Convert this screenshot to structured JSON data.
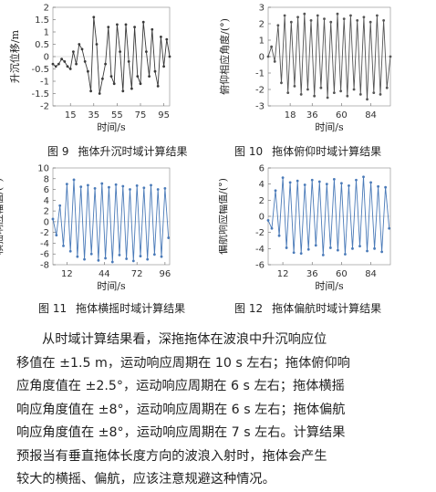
{
  "figures": [
    {
      "number": "图 9",
      "caption": "拖体升沉时域计算结果",
      "chart_data": {
        "type": "line",
        "ylabel": "升沉位移/m",
        "xlabel": "时间/s",
        "ylim": [
          -2,
          2
        ],
        "yticks": [
          2,
          1.5,
          1,
          0.5,
          0,
          -0.5,
          -1,
          -1.5,
          -2
        ],
        "xlim": [
          0,
          100
        ],
        "xticks": [
          15,
          35,
          55,
          75,
          95
        ],
        "color": "#3a3a3a",
        "series": [
          {
            "x": [
              0,
              2.5,
              5,
              7.5,
              10,
              12.5,
              15,
              17.5,
              20,
              22.5,
              25,
              27.5,
              30,
              32.5,
              35,
              37.5,
              40,
              42.5,
              45,
              47.5,
              50,
              52.5,
              55,
              57.5,
              60,
              62.5,
              65,
              67.5,
              70,
              72.5,
              75,
              77.5,
              80,
              82.5,
              85,
              87.5,
              90,
              92.5,
              95,
              97.5,
              100
            ],
            "values": [
              -0.3,
              -0.4,
              -0.3,
              -0.1,
              -0.2,
              -0.4,
              -0.5,
              0.2,
              -0.3,
              0.5,
              0.3,
              -0.2,
              -0.6,
              -1.4,
              1.6,
              0.5,
              -1.5,
              -0.9,
              -0.3,
              1.2,
              -0.8,
              -1.1,
              1.3,
              0.2,
              -1.4,
              1.3,
              -0.2,
              -1.3,
              1.2,
              -0.8,
              -1.1,
              1.4,
              0.2,
              -0.8,
              1.1,
              -0.6,
              -1.2,
              0.8,
              -0.4,
              0.7,
              0.0
            ]
          }
        ]
      }
    },
    {
      "number": "图 10",
      "caption": "拖体俯仰时域计算结果",
      "chart_data": {
        "type": "line",
        "ylabel": "俯仰相应角度/(°)",
        "xlabel": "时间/s",
        "ylim": [
          -3,
          3
        ],
        "yticks": [
          3,
          2,
          1,
          0,
          -1,
          -2,
          -3
        ],
        "xlim": [
          0,
          100
        ],
        "xticks": [
          18,
          36,
          60,
          84
        ],
        "color": "#555555",
        "series": [
          {
            "x": [
              0,
              2.7,
              5.4,
              8.1,
              10.8,
              13.5,
              16.2,
              18.9,
              21.6,
              24.3,
              27,
              29.7,
              32.4,
              35.1,
              37.8,
              40.5,
              43.2,
              45.9,
              48.6,
              51.3,
              54,
              56.7,
              59.4,
              62.1,
              64.8,
              67.5,
              70.2,
              72.9,
              75.6,
              78.3,
              81,
              83.7,
              86.4,
              89.1,
              91.8,
              94.5,
              97.2,
              100
            ],
            "values": [
              0.0,
              0.6,
              -0.3,
              1.9,
              -1.6,
              2.5,
              -2.2,
              2.1,
              -1.8,
              2.4,
              -2.3,
              2.6,
              -2.0,
              2.2,
              -2.4,
              2.5,
              -1.9,
              2.3,
              -2.5,
              2.1,
              -2.2,
              2.6,
              -2.1,
              2.3,
              -2.4,
              2.5,
              -2.0,
              2.2,
              -2.3,
              2.4,
              -2.6,
              2.1,
              -2.2,
              2.5,
              -2.3,
              2.2,
              -1.9,
              0.0
            ]
          }
        ]
      }
    },
    {
      "number": "图 11",
      "caption": "拖体横摇时域计算结果",
      "chart_data": {
        "type": "line",
        "ylabel": "横摇响应幅值/(°)",
        "xlabel": "时间/s",
        "ylim": [
          -8,
          10
        ],
        "yticks": [
          10,
          8,
          6,
          4,
          2,
          0,
          -2,
          -4,
          -6,
          -8
        ],
        "xlim": [
          0,
          100
        ],
        "xticks": [
          12,
          44,
          72,
          96
        ],
        "color": "#4a7ab8",
        "series": [
          {
            "x": [
              0,
              3,
              6,
              9,
              12,
              15,
              18,
              21,
              24,
              27,
              30,
              33,
              36,
              39,
              42,
              45,
              48,
              51,
              54,
              57,
              60,
              63,
              66,
              69,
              72,
              75,
              78,
              81,
              84,
              87,
              90,
              93,
              96,
              99
            ],
            "values": [
              0.5,
              -2.5,
              3.0,
              -4.5,
              7.0,
              -5.5,
              7.8,
              -6.5,
              6.5,
              -7.0,
              6.8,
              -6.0,
              6.2,
              -7.2,
              7.1,
              -6.8,
              6.4,
              -7.5,
              6.9,
              -6.2,
              6.6,
              -6.9,
              6.0,
              -7.3,
              6.7,
              -6.4,
              6.3,
              -7.0,
              6.8,
              -6.1,
              6.0,
              -6.5,
              6.2,
              -3.0
            ]
          }
        ]
      }
    },
    {
      "number": "图 12",
      "caption": "拖体偏航时域计算结果",
      "chart_data": {
        "type": "line",
        "ylabel": "偏航响应幅值/(°)",
        "xlabel": "时间/s",
        "ylim": [
          -6,
          6
        ],
        "yticks": [
          6,
          4,
          2,
          0,
          -2,
          -4,
          -6
        ],
        "xlim": [
          0,
          100
        ],
        "xticks": [
          12,
          36,
          60,
          84
        ],
        "color": "#4a7ab8",
        "series": [
          {
            "x": [
              0,
              3,
              6,
              9,
              12,
              15,
              18,
              21,
              24,
              27,
              30,
              33,
              36,
              39,
              42,
              45,
              48,
              51,
              54,
              57,
              60,
              63,
              66,
              69,
              72,
              75,
              78,
              81,
              84,
              87,
              90,
              93,
              96,
              99
            ],
            "values": [
              -0.5,
              -1.5,
              3.2,
              -2.4,
              4.8,
              -3.9,
              4.2,
              -4.5,
              4.4,
              -4.6,
              3.9,
              -4.1,
              4.5,
              -3.6,
              4.3,
              -4.8,
              4.0,
              -3.9,
              4.6,
              -4.2,
              4.1,
              -4.7,
              3.8,
              -4.0,
              4.5,
              -3.7,
              4.9,
              -4.3,
              4.2,
              -4.0,
              3.7,
              -4.4,
              3.6,
              -1.5
            ]
          }
        ]
      }
    }
  ],
  "paragraph": {
    "lines": [
      "从时域计算结果看，深拖拖体在波浪中升沉响应位",
      "移值在 ±1.5 m，运动响应周期在 10 s 左右；拖体俯仰响",
      "应角度值在 ±2.5°，运动响应周期在 6 s 左右；拖体横摇",
      "响应角度值在 ±8°，运动响应周期在 6 s 左右；拖体偏航",
      "响应角度值在 ±8°，运动响应周期在 7 s 左右。计算结果",
      "预报当有垂直拖体长度方向的波浪入射时，拖体会产生",
      "较大的横摇、偏航，应该注意规避这种情况。"
    ]
  }
}
